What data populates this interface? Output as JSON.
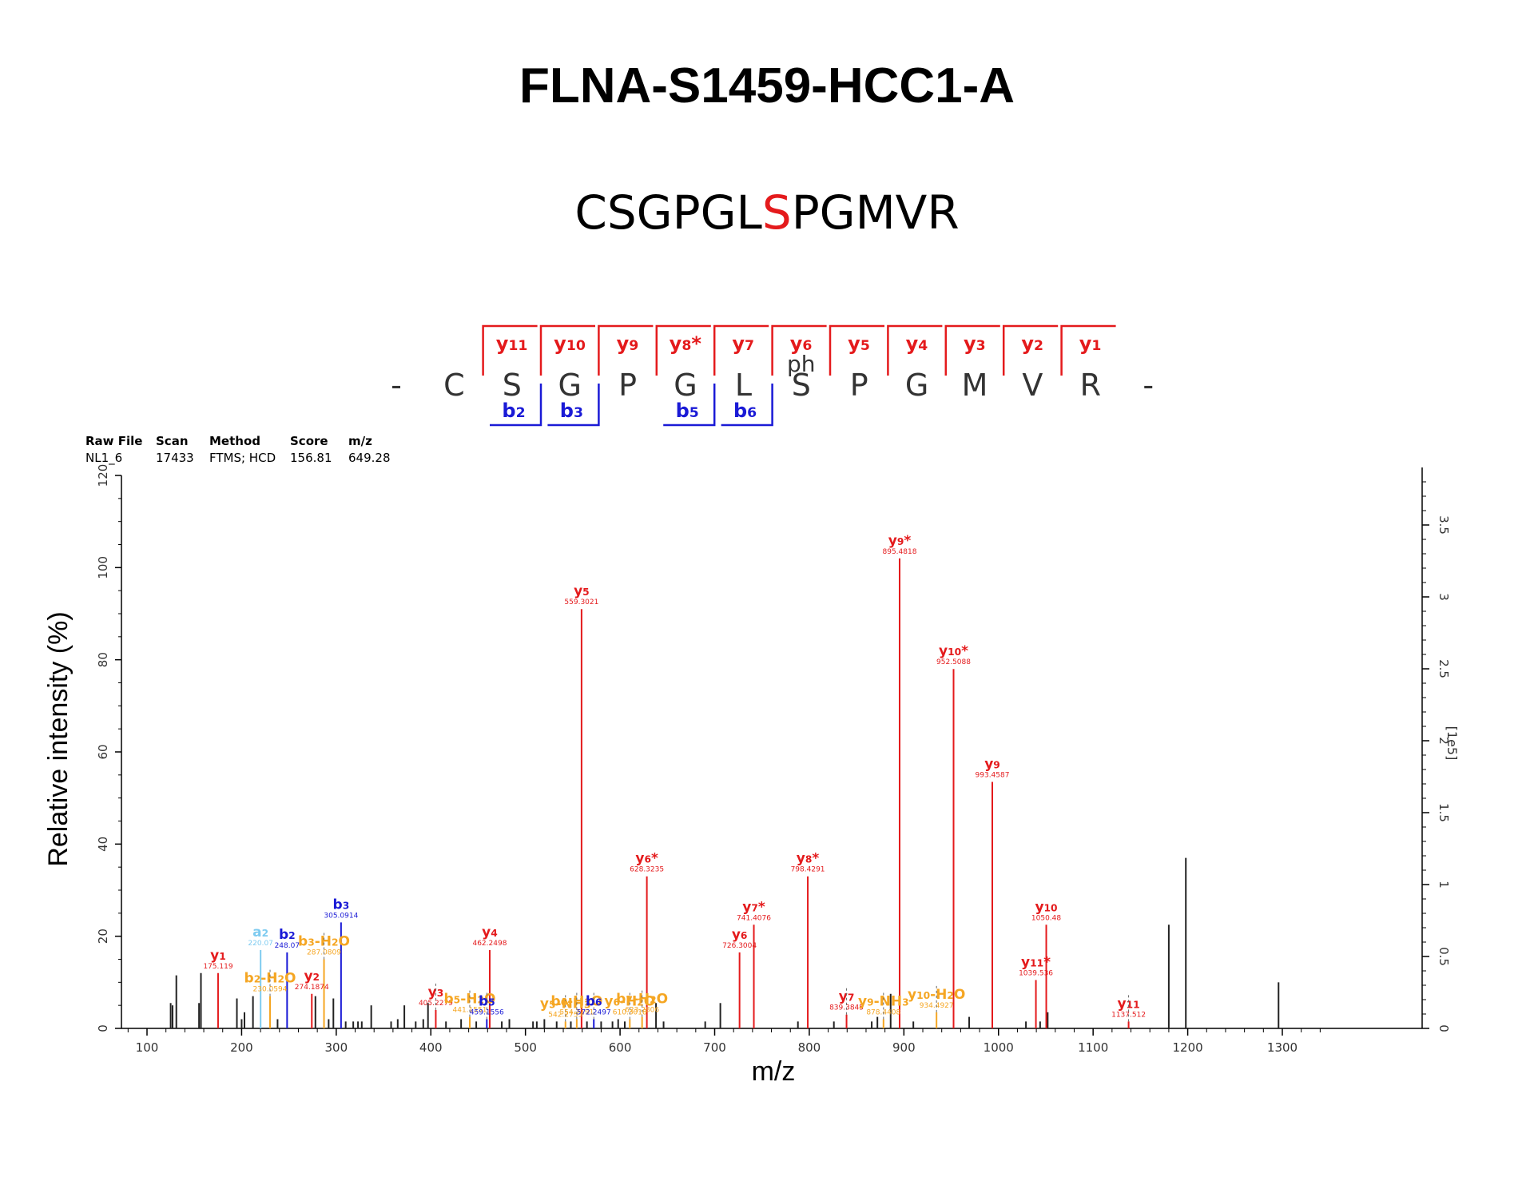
{
  "title": "FLNA-S1459-HCC1-A",
  "peptide": {
    "before": "CSGPGL",
    "site": "S",
    "after": "PGMVR"
  },
  "colors": {
    "y": "#e41a1c",
    "b": "#1a1ad6",
    "neutral_loss": "#f5a623",
    "a": "#7ecbf0",
    "other": "#000000",
    "site": "#e41a1c"
  },
  "sequence_map": {
    "residues": [
      "-",
      "C",
      "S",
      "G",
      "P",
      "G",
      "L",
      "S",
      "P",
      "G",
      "M",
      "V",
      "R",
      "-"
    ],
    "residue_mod": {
      "index": 7,
      "label": "ph"
    },
    "y_labels": [
      "y11",
      "y10",
      "y9",
      "y8*",
      "y7",
      "y6",
      "y5",
      "y4",
      "y3",
      "y2",
      "y1"
    ],
    "b_labels": [
      {
        "after_residue": 2,
        "label": "b2"
      },
      {
        "after_residue": 3,
        "label": "b3"
      },
      {
        "after_residue": 5,
        "label": "b5"
      },
      {
        "after_residue": 6,
        "label": "b6"
      }
    ]
  },
  "info_table": {
    "headers": [
      "Raw File",
      "Scan",
      "Method",
      "Score",
      "m/z"
    ],
    "values": [
      "NL1_6",
      "17433",
      "FTMS; HCD",
      "156.81",
      "649.28"
    ]
  },
  "chart_data": {
    "type": "bar",
    "xlabel": "m/z",
    "ylabel": "Relative intensity (%)",
    "y2label": "[1e5]",
    "xlim": [
      75,
      1350
    ],
    "ylim": [
      0,
      120
    ],
    "y2lim": [
      0,
      3.9
    ],
    "xticks": [
      100,
      200,
      300,
      400,
      500,
      600,
      700,
      800,
      900,
      1000,
      1100,
      1200,
      1300
    ],
    "yticks": [
      0,
      20,
      40,
      60,
      80,
      100,
      120
    ],
    "y2ticks": [
      0,
      0.5,
      1,
      1.5,
      2,
      2.5,
      3,
      3.5
    ],
    "annotated_peaks": [
      {
        "mz": 175.119,
        "intensity": 12,
        "ion": "y1",
        "label": "175.119",
        "kind": "y"
      },
      {
        "mz": 220.07,
        "intensity": 17,
        "ion": "a2",
        "label": "220.07",
        "kind": "a"
      },
      {
        "mz": 230.0594,
        "intensity": 7,
        "ion": "b2-H2O",
        "label": "230.0594",
        "kind": "nl"
      },
      {
        "mz": 248.07,
        "intensity": 16.5,
        "ion": "b2",
        "label": "248.07",
        "kind": "b"
      },
      {
        "mz": 274.1874,
        "intensity": 7.5,
        "ion": "y2",
        "label": "274.1874",
        "kind": "y"
      },
      {
        "mz": 287.0809,
        "intensity": 15,
        "ion": "b3-H2O",
        "label": "287.0809",
        "kind": "nl"
      },
      {
        "mz": 305.0914,
        "intensity": 23,
        "ion": "b3",
        "label": "305.0914",
        "kind": "b"
      },
      {
        "mz": 405.2279,
        "intensity": 4,
        "ion": "y3",
        "label": "405.2279",
        "kind": "y"
      },
      {
        "mz": 441.1551,
        "intensity": 2.5,
        "ion": "b5-H2O",
        "label": "441.1551",
        "kind": "nl"
      },
      {
        "mz": 459.1556,
        "intensity": 2,
        "ion": "b5",
        "label": "459.1556",
        "kind": "b"
      },
      {
        "mz": 462.2498,
        "intensity": 17,
        "ion": "y4",
        "label": "462.2498",
        "kind": "y"
      },
      {
        "mz": 542.2753,
        "intensity": 1.5,
        "ion": "y5-NH3",
        "label": "542.2753",
        "kind": "nl"
      },
      {
        "mz": 554.2191,
        "intensity": 2,
        "ion": "b6-H2O",
        "label": "554.2191",
        "kind": "nl"
      },
      {
        "mz": 559.3021,
        "intensity": 91,
        "ion": "y5",
        "label": "559.3021",
        "kind": "y"
      },
      {
        "mz": 572.2497,
        "intensity": 2,
        "ion": "b6",
        "label": "572.2497",
        "kind": "b"
      },
      {
        "mz": 610.3018,
        "intensity": 2,
        "ion": "y6-H2O",
        "label": "610.3018",
        "kind": "nl"
      },
      {
        "mz": 623.2806,
        "intensity": 2.5,
        "ion": "b7-H2O",
        "label": "623.2806",
        "kind": "nl"
      },
      {
        "mz": 628.3235,
        "intensity": 33,
        "ion": "y6*",
        "label": "628.3235",
        "kind": "y"
      },
      {
        "mz": 726.3004,
        "intensity": 16.5,
        "ion": "y6",
        "label": "726.3004",
        "kind": "y"
      },
      {
        "mz": 741.4076,
        "intensity": 22.5,
        "ion": "y7*",
        "label": "741.4076",
        "kind": "y"
      },
      {
        "mz": 798.4291,
        "intensity": 33,
        "ion": "y8*",
        "label": "798.4291",
        "kind": "y"
      },
      {
        "mz": 839.3845,
        "intensity": 3,
        "ion": "y7",
        "label": "839.3845",
        "kind": "y"
      },
      {
        "mz": 878.4408,
        "intensity": 2,
        "ion": "y9-NH3",
        "label": "878.4408",
        "kind": "nl"
      },
      {
        "mz": 895.4818,
        "intensity": 102,
        "ion": "y9*",
        "label": "895.4818",
        "kind": "y"
      },
      {
        "mz": 934.4927,
        "intensity": 3.5,
        "ion": "y10-H2O",
        "label": "934.4927",
        "kind": "nl"
      },
      {
        "mz": 952.5088,
        "intensity": 78,
        "ion": "y10*",
        "label": "952.5088",
        "kind": "y"
      },
      {
        "mz": 993.4587,
        "intensity": 53.5,
        "ion": "y9",
        "label": "993.4587",
        "kind": "y"
      },
      {
        "mz": 1039.536,
        "intensity": 10.5,
        "ion": "y11*",
        "label": "1039.536",
        "kind": "y"
      },
      {
        "mz": 1050.48,
        "intensity": 22.5,
        "ion": "y10",
        "label": "1050.48",
        "kind": "y"
      },
      {
        "mz": 1137.512,
        "intensity": 1.5,
        "ion": "y11",
        "label": "1137.512",
        "kind": "y"
      }
    ],
    "unlabeled_peaks": [
      [
        125,
        5.5
      ],
      [
        127,
        5
      ],
      [
        131,
        11.5
      ],
      [
        155,
        5.5
      ],
      [
        157,
        12
      ],
      [
        195,
        6.5
      ],
      [
        200,
        2
      ],
      [
        203,
        3.5
      ],
      [
        212,
        7
      ],
      [
        238,
        2
      ],
      [
        278,
        7
      ],
      [
        292,
        2
      ],
      [
        297,
        6.5
      ],
      [
        310,
        1.5
      ],
      [
        318,
        1.5
      ],
      [
        323,
        1.5
      ],
      [
        327,
        1.5
      ],
      [
        337,
        5
      ],
      [
        358,
        1.5
      ],
      [
        365,
        2
      ],
      [
        372,
        5
      ],
      [
        384,
        1.5
      ],
      [
        392,
        2
      ],
      [
        397,
        5.5
      ],
      [
        416,
        1.5
      ],
      [
        432,
        2
      ],
      [
        448,
        1.5
      ],
      [
        475,
        1.5
      ],
      [
        483,
        2
      ],
      [
        508,
        1.5
      ],
      [
        512,
        1.5
      ],
      [
        520,
        2
      ],
      [
        533,
        1.5
      ],
      [
        548,
        1.5
      ],
      [
        565,
        1.5
      ],
      [
        580,
        1.5
      ],
      [
        592,
        1.5
      ],
      [
        598,
        2
      ],
      [
        605,
        1.5
      ],
      [
        638,
        5.5
      ],
      [
        646,
        1.5
      ],
      [
        690,
        1.5
      ],
      [
        706,
        5.5
      ],
      [
        788,
        1.5
      ],
      [
        826,
        1.5
      ],
      [
        866,
        1.5
      ],
      [
        872,
        2.5
      ],
      [
        886,
        7.5
      ],
      [
        910,
        1.5
      ],
      [
        969,
        2.5
      ],
      [
        1029,
        1.5
      ],
      [
        1044,
        1.5
      ],
      [
        1052,
        3.5
      ],
      [
        1180,
        22.5
      ],
      [
        1198,
        37
      ],
      [
        1296,
        10
      ]
    ]
  }
}
